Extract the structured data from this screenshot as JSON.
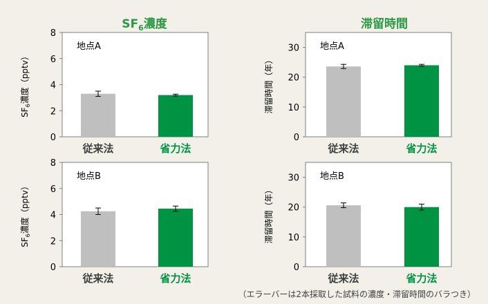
{
  "headers": {
    "left": {
      "main": "SF",
      "sub": "6",
      "tail": "濃度"
    },
    "right": "滞留時間"
  },
  "caption": "（エラーバーは2本採取した試料の濃度・滞留時間のバラつき）",
  "colors": {
    "conventional": "#bfbfbf",
    "labor_saving": "#009344",
    "header_green": "#2b9845",
    "frame": "#7f7f7f",
    "background": "#f2f0e9"
  },
  "chart_data": [
    {
      "type": "bar",
      "panel": "sf6-site-a",
      "site_label": "地点A",
      "ylabel": {
        "main": "SF",
        "sub": "6",
        "tail": "濃度（pptv）"
      },
      "categories": [
        "従来法",
        "省力法"
      ],
      "values": [
        3.3,
        3.2
      ],
      "error": [
        0.2,
        0.07
      ],
      "ylim": [
        0,
        8
      ],
      "yticks": [
        0,
        2,
        4,
        6,
        8
      ],
      "tick_labels": [
        "0",
        "2",
        "4",
        "6",
        "8"
      ]
    },
    {
      "type": "bar",
      "panel": "residence-site-a",
      "site_label": "地点A",
      "ylabel": "滞留時間（年）",
      "categories": [
        "従来法",
        "省力法"
      ],
      "values": [
        23.6,
        24.0
      ],
      "error": [
        0.7,
        0.3
      ],
      "ylim": [
        0,
        35
      ],
      "yticks": [
        0,
        10,
        20,
        30
      ],
      "tick_labels": [
        "0",
        "10",
        "20",
        "30"
      ]
    },
    {
      "type": "bar",
      "panel": "sf6-site-b",
      "site_label": "地点B",
      "ylabel": {
        "main": "SF",
        "sub": "6",
        "tail": "濃度（pptv）"
      },
      "categories": [
        "従来法",
        "省力法"
      ],
      "values": [
        4.25,
        4.45
      ],
      "error": [
        0.25,
        0.2
      ],
      "ylim": [
        0,
        8
      ],
      "yticks": [
        0,
        2,
        4,
        6,
        8
      ],
      "tick_labels": [
        "0",
        "2",
        "4",
        "6",
        "8"
      ]
    },
    {
      "type": "bar",
      "panel": "residence-site-b",
      "site_label": "地点B",
      "ylabel": "滞留時間（年）",
      "categories": [
        "従来法",
        "省力法"
      ],
      "values": [
        20.6,
        20.0
      ],
      "error": [
        0.8,
        1.0
      ],
      "ylim": [
        0,
        35
      ],
      "yticks": [
        0,
        10,
        20,
        30
      ],
      "tick_labels": [
        "0",
        "10",
        "20",
        "30"
      ]
    }
  ]
}
